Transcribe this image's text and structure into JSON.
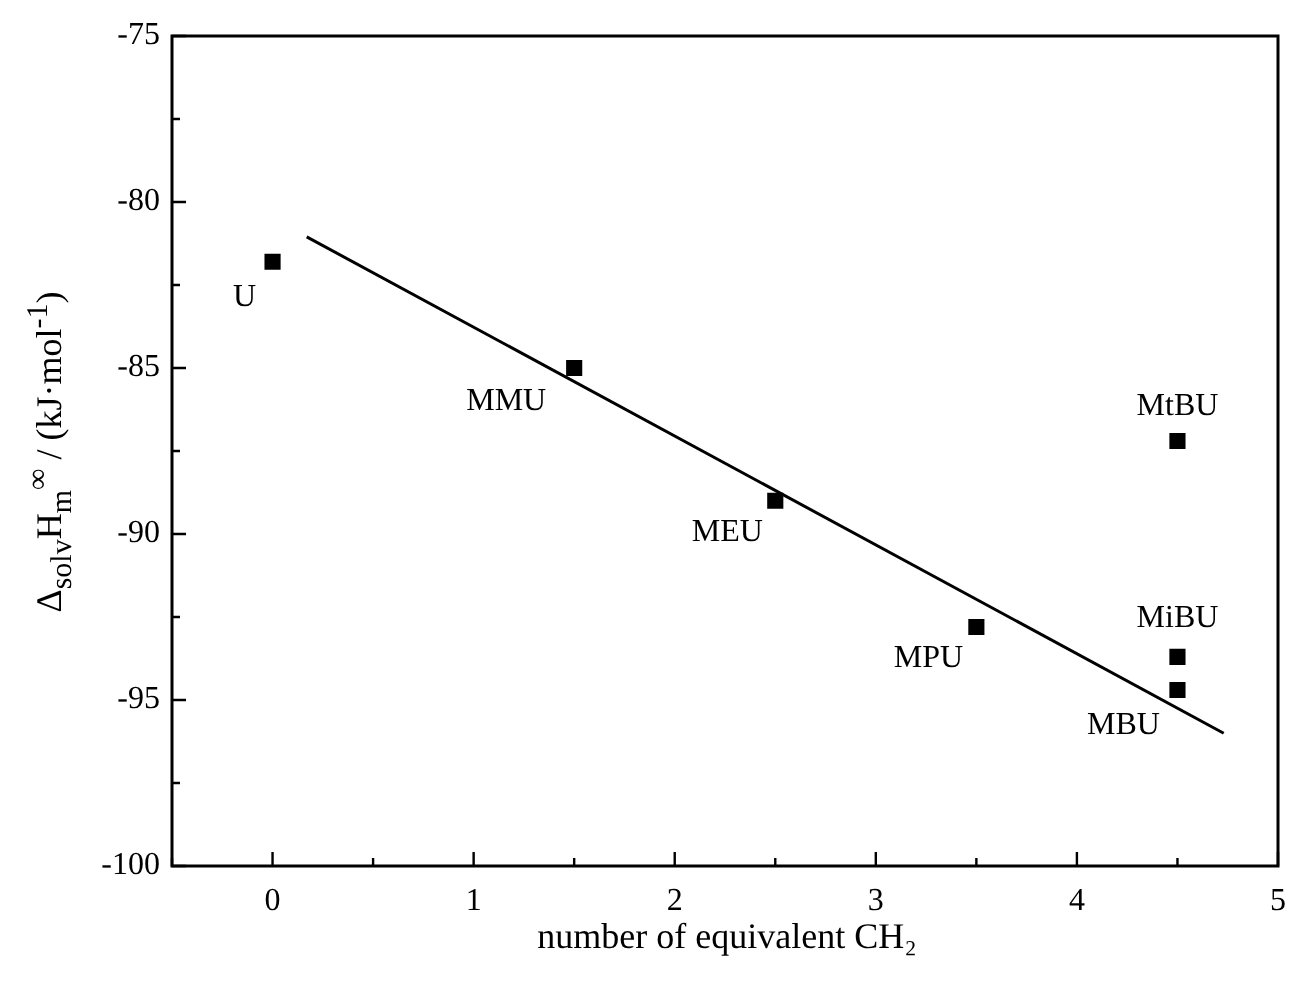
{
  "chart_data": {
    "type": "scatter",
    "xlabel": "number of equivalent CH₂",
    "ylabel": "Δ$_{solv}$H$_{m}$$^{∞}$ / (kJ·mol$^{-1}$)",
    "xlim": [
      -0.5,
      5
    ],
    "ylim": [
      -100,
      -75
    ],
    "xticks": [
      {
        "value": -0.5,
        "label": null
      },
      0,
      {
        "value": 0.5,
        "label": null
      },
      1,
      {
        "value": 1.5,
        "label": null
      },
      2,
      {
        "value": 2.5,
        "label": null
      },
      3,
      {
        "value": 3.5,
        "label": null
      },
      4,
      {
        "value": 4.5,
        "label": null
      },
      5
    ],
    "yticks": [
      -100,
      {
        "value": -97.5,
        "label": null
      },
      -95,
      {
        "value": -92.5,
        "label": null
      },
      -90,
      {
        "value": -87.5,
        "label": null
      },
      -85,
      {
        "value": -82.5,
        "label": null
      },
      -80,
      {
        "value": -77.5,
        "label": null
      },
      -75
    ],
    "series": [
      {
        "type": "scatter",
        "color": "#000000",
        "marker": "square",
        "x": [
          0,
          1.5,
          2.5,
          3.5,
          4.5,
          4.5,
          4.5
        ],
        "values": [
          -81.8,
          -85.0,
          -89.0,
          -92.8,
          -87.2,
          -93.7,
          -94.7
        ]
      },
      {
        "type": "line",
        "color": "#000000",
        "marker": "none",
        "x": [
          0.17,
          4.73
        ],
        "values": [
          -81.05,
          -96.0
        ]
      }
    ],
    "annotations": [
      {
        "text": "U",
        "x": 0,
        "y": -81.8
      },
      {
        "text": "MMU",
        "x": 1.5,
        "y": -85.0
      },
      {
        "text": "MEU",
        "x": 2.5,
        "y": -89.0
      },
      {
        "text": "MPU",
        "x": 3.5,
        "y": -92.8
      },
      {
        "text": "MtBU",
        "x": 4.5,
        "y": -87.2
      },
      {
        "text": "MiBU",
        "x": 4.5,
        "y": -93.7
      },
      {
        "text": "MBU",
        "x": 4.5,
        "y": -94.7
      }
    ],
    "grid": false,
    "legend": false
  }
}
